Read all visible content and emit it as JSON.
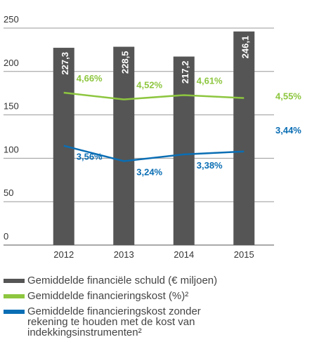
{
  "chart_data": {
    "type": "bar-line",
    "categories": [
      "2012",
      "2013",
      "2014",
      "2015"
    ],
    "ylim": [
      0,
      250
    ],
    "yticks": [
      0,
      50,
      100,
      150,
      200,
      250
    ],
    "y2lim": [
      1.5,
      6
    ],
    "series": [
      {
        "name": "Gemiddelde financiële schuld (€ miljoen)",
        "type": "bar",
        "color": "#555555",
        "values": [
          227.3,
          228.5,
          217.2,
          246.1
        ],
        "value_labels": [
          "227,3",
          "228,5",
          "217,2",
          "246,1"
        ]
      },
      {
        "name": "Gemiddelde financieringskost (%)²",
        "type": "line",
        "axis": "y2",
        "color": "#8dc63f",
        "values": [
          4.66,
          4.52,
          4.61,
          4.55
        ],
        "value_labels": [
          "4,66%",
          "4,52%",
          "4,61%",
          "4,55%"
        ]
      },
      {
        "name": "Gemiddelde financieringskost zonder rekening te houden met de kost van indekkingsinstrumenten²",
        "type": "line",
        "axis": "y2",
        "color": "#0a6eb4",
        "values": [
          3.56,
          3.24,
          3.38,
          3.44
        ],
        "value_labels": [
          "3,56%",
          "3,24%",
          "3,38%",
          "3,44%"
        ]
      }
    ]
  }
}
